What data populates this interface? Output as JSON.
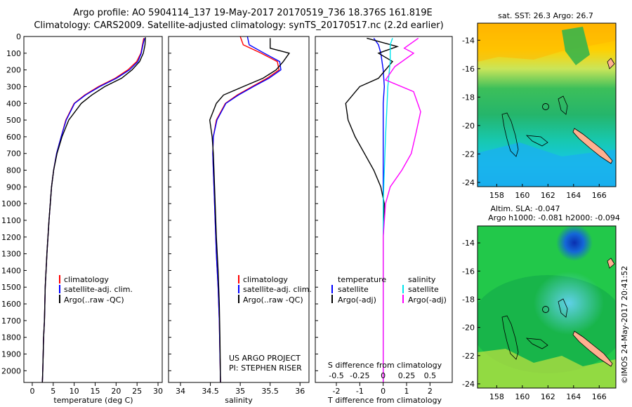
{
  "header": {
    "title_line1": "Argo profile: AO 5904114_137 19-May-2017 20170519_736 18.376S 161.819E",
    "title_line2": "Climatology: CARS2009. Satellite-adjusted climatology: synTS_20170517.nc (2.2d earlier)"
  },
  "credit": "©IMOS 24-May-2017 20:41:52",
  "colors": {
    "climatology": "#ff0000",
    "satellite": "#0000ff",
    "argo": "#000000",
    "salinity_satellite": "#00e5ee",
    "salinity_argo": "#ff00ff",
    "coast_fill": "#ffb090"
  },
  "chart_data": [
    {
      "type": "line",
      "id": "temperature",
      "xlabel": "temperature (deg C)",
      "ylabel": "",
      "xlim": [
        -2,
        31
      ],
      "ylim": [
        2070,
        0
      ],
      "y_inverted": true,
      "xticks": [
        0,
        5,
        10,
        15,
        20,
        25,
        30
      ],
      "yticks": [
        0,
        100,
        200,
        300,
        400,
        500,
        600,
        700,
        800,
        900,
        1000,
        1100,
        1200,
        1300,
        1400,
        1500,
        1600,
        1700,
        1800,
        1900,
        2000
      ],
      "legend": [
        "climatology",
        "satellite-adj. clim.",
        "Argo(..raw -QC)"
      ],
      "series": [
        {
          "name": "climatology",
          "color": "#ff0000",
          "x": [
            26.6,
            26.3,
            25.9,
            24.9,
            22.8,
            19.8,
            15.8,
            12.5,
            10.0,
            8.0,
            6.9,
            5.8,
            5.1,
            4.6,
            4.3,
            4.0,
            3.5,
            3.1,
            2.9,
            2.7,
            2.6,
            2.5,
            2.45,
            2.4
          ],
          "y": [
            10,
            50,
            100,
            150,
            200,
            250,
            300,
            350,
            400,
            500,
            600,
            700,
            800,
            900,
            1000,
            1100,
            1300,
            1500,
            1700,
            1800,
            1900,
            2000,
            2040,
            2070
          ]
        },
        {
          "name": "satellite-adj. clim.",
          "color": "#0000ff",
          "x": [
            26.8,
            26.4,
            26.0,
            25.2,
            23.2,
            20.1,
            16.1,
            12.7,
            10.1,
            8.1,
            6.9,
            5.8,
            5.1,
            4.6,
            4.3,
            4.0,
            3.5,
            3.1,
            2.9,
            2.7,
            2.6,
            2.5,
            2.45,
            2.4
          ],
          "y": [
            10,
            50,
            100,
            150,
            200,
            250,
            300,
            350,
            400,
            500,
            600,
            700,
            800,
            900,
            1000,
            1100,
            1300,
            1500,
            1700,
            1800,
            1900,
            2000,
            2040,
            2070
          ]
        },
        {
          "name": "Argo(..raw -QC)",
          "color": "#000000",
          "x": [
            27.0,
            26.9,
            26.5,
            25.6,
            23.8,
            21.3,
            17.3,
            14.2,
            11.7,
            8.7,
            7.1,
            5.9,
            5.1,
            4.6,
            4.3,
            4.0,
            3.5,
            3.1,
            2.9,
            2.7,
            2.6,
            2.5,
            2.45,
            2.4
          ],
          "y": [
            5,
            50,
            100,
            150,
            200,
            250,
            300,
            350,
            400,
            500,
            600,
            700,
            800,
            900,
            1000,
            1100,
            1300,
            1500,
            1700,
            1800,
            1900,
            2000,
            2040,
            2070
          ]
        }
      ],
      "annotations": []
    },
    {
      "type": "line",
      "id": "salinity",
      "xlabel": "salinity",
      "ylabel": "",
      "xlim": [
        33.8,
        36.15
      ],
      "ylim": [
        2070,
        0
      ],
      "y_inverted": true,
      "xticks": [
        34,
        34.5,
        35,
        35.5,
        36
      ],
      "legend": [
        "climatology",
        "satellite-adj. clim.",
        "Argo(..raw -QC)"
      ],
      "series": [
        {
          "name": "climatology",
          "color": "#ff0000",
          "x": [
            35.0,
            35.05,
            35.35,
            35.62,
            35.65,
            35.45,
            35.2,
            34.95,
            34.75,
            34.6,
            34.55,
            34.54,
            34.55,
            34.56,
            34.58,
            34.6,
            34.63,
            34.65,
            34.66,
            34.67
          ],
          "y": [
            0,
            50,
            100,
            150,
            200,
            250,
            300,
            350,
            400,
            500,
            600,
            700,
            800,
            900,
            1100,
            1300,
            1500,
            1700,
            1900,
            2070
          ]
        },
        {
          "name": "satellite-adj. clim.",
          "color": "#0000ff",
          "x": [
            35.12,
            35.15,
            35.4,
            35.66,
            35.68,
            35.48,
            35.22,
            34.97,
            34.76,
            34.61,
            34.55,
            34.54,
            34.55,
            34.56,
            34.58,
            34.6,
            34.63,
            34.65,
            34.66,
            34.67
          ],
          "y": [
            0,
            50,
            100,
            150,
            200,
            250,
            300,
            350,
            400,
            500,
            600,
            700,
            800,
            900,
            1100,
            1300,
            1500,
            1700,
            1900,
            2070
          ]
        },
        {
          "name": "Argo(..raw -QC)",
          "color": "#000000",
          "x": [
            35.5,
            35.5,
            35.82,
            35.72,
            35.6,
            35.38,
            35.05,
            34.72,
            34.6,
            34.49,
            34.53,
            34.55,
            34.56,
            34.58,
            34.6,
            34.63,
            34.65,
            34.66,
            34.67
          ],
          "y": [
            10,
            70,
            100,
            150,
            200,
            250,
            300,
            350,
            400,
            500,
            600,
            700,
            800,
            1000,
            1200,
            1400,
            1600,
            1800,
            2070
          ]
        }
      ],
      "annotations": [
        "US ARGO PROJECT",
        "PI: STEPHEN RISER"
      ]
    },
    {
      "type": "line",
      "id": "difference",
      "xlabel": "T difference from climatology",
      "xlabel_top": "S difference from climatology",
      "ylabel": "",
      "xlim": [
        -2.9,
        2.95
      ],
      "ylim": [
        2070,
        0
      ],
      "y_inverted": true,
      "xticks": [
        -2,
        -1,
        0,
        1,
        2
      ],
      "s_xticks": [
        "-0.5",
        "-0.25",
        "0",
        "0.25",
        "0.5"
      ],
      "s_xtick_positions": [
        -2,
        -1,
        0,
        1,
        2
      ],
      "legend_groups": [
        {
          "heading": "temperature",
          "items": [
            "satellite",
            "Argo(-adj)"
          ]
        },
        {
          "heading": "salinity",
          "items": [
            "satellite",
            "Argo(-adj)"
          ]
        }
      ],
      "series": [
        {
          "name": "temperature satellite",
          "color": "#0000ff",
          "x": [
            -0.4,
            -0.2,
            -0.1,
            0.0,
            0.05,
            0.0,
            0.0,
            0.0,
            0.0,
            0.0,
            0.0,
            0.0,
            0.0
          ],
          "y": [
            10,
            50,
            100,
            200,
            300,
            400,
            600,
            800,
            1000,
            1300,
            1600,
            1900,
            2070
          ]
        },
        {
          "name": "temperature Argo(-adj)",
          "color": "#000000",
          "x": [
            -0.7,
            0.6,
            -0.2,
            0.4,
            -0.2,
            -1.0,
            -1.6,
            -1.5,
            -1.2,
            -0.8,
            -0.4,
            -0.1,
            0.05,
            0.0,
            0.0,
            0.0,
            0.0
          ],
          "y": [
            10,
            60,
            100,
            150,
            250,
            300,
            400,
            500,
            600,
            700,
            800,
            900,
            1000,
            1200,
            1500,
            1800,
            2070
          ]
        },
        {
          "name": "salinity satellite",
          "color": "#00e5ee",
          "x": [
            0.4,
            0.3,
            0.3,
            0.2,
            0.15,
            0.1,
            0.05,
            0.0,
            0.0,
            0.0,
            0.0
          ],
          "y": [
            10,
            50,
            150,
            300,
            450,
            600,
            800,
            1000,
            1300,
            1700,
            2070
          ]
        },
        {
          "name": "salinity Argo(-adj)",
          "color": "#ff00ff",
          "x": [
            1.5,
            0.9,
            1.3,
            0.5,
            0.1,
            1.3,
            1.6,
            1.4,
            1.2,
            0.8,
            0.3,
            0.1,
            0.0,
            0.0,
            0.0
          ],
          "y": [
            10,
            70,
            100,
            180,
            260,
            330,
            450,
            580,
            700,
            800,
            900,
            1000,
            1200,
            1500,
            2070
          ]
        }
      ],
      "annotations": []
    },
    {
      "type": "heatmap",
      "id": "sst_map",
      "title": "sat. SST: 26.3  Argo: 26.7",
      "xlim": [
        156.5,
        167.3
      ],
      "ylim": [
        -24.3,
        -12.8
      ],
      "xticks": [
        158,
        160,
        162,
        164,
        166
      ],
      "yticks": [
        -14,
        -16,
        -18,
        -20,
        -22,
        -24
      ],
      "argo_position": {
        "lon": 161.819,
        "lat": -18.376
      }
    },
    {
      "type": "heatmap",
      "id": "sla_map",
      "title": "Altim. SLA: -0.047",
      "subtitle": "Argo h1000: -0.081  h2000: -0.094",
      "xlim": [
        156.5,
        167.3
      ],
      "ylim": [
        -24.3,
        -12.8
      ],
      "xticks": [
        158,
        160,
        162,
        164,
        166
      ],
      "yticks": [
        -14,
        -16,
        -18,
        -20,
        -22,
        -24
      ],
      "argo_position": {
        "lon": 161.819,
        "lat": -18.376
      }
    }
  ]
}
